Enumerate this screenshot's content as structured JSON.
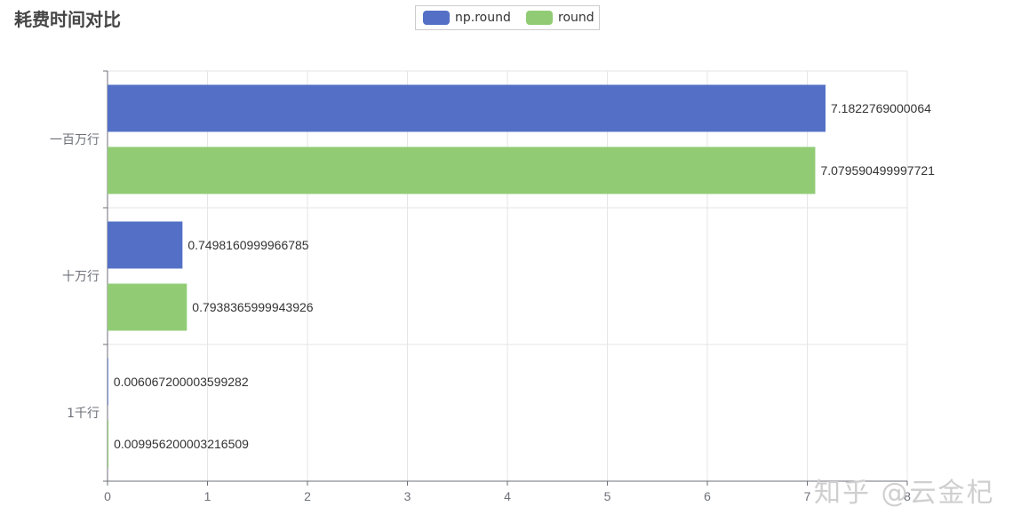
{
  "chart_data": {
    "type": "bar",
    "orientation": "horizontal",
    "title": "耗费时间对比",
    "categories": [
      "一百万行",
      "十万行",
      "1千行"
    ],
    "series": [
      {
        "name": "np.round",
        "color": "#5470c6",
        "values": [
          7.1822769000064,
          0.7498160999966785,
          0.006067200003599282
        ],
        "labels": [
          "7.1822769000064",
          "0.7498160999966785",
          "0.006067200003599282"
        ]
      },
      {
        "name": "round",
        "color": "#91cc75",
        "values": [
          7.079590499997721,
          0.7938365999943926,
          0.009956200003216509
        ],
        "labels": [
          "7.079590499997721",
          "0.7938365999943926",
          "0.009956200003216509"
        ]
      }
    ],
    "xlim": [
      0,
      8
    ],
    "xticks": [
      0,
      1,
      2,
      3,
      4,
      5,
      6,
      7,
      8
    ],
    "grid": true,
    "legend_position": "top-center"
  },
  "watermark": "知乎 @云金杞"
}
